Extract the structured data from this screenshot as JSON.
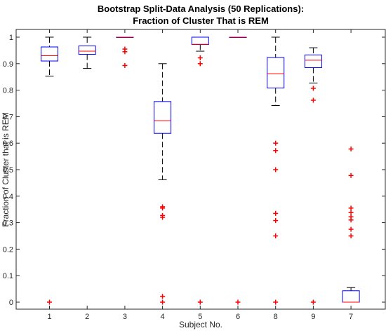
{
  "chart_data": {
    "type": "boxplot",
    "title": [
      "Bootstrap Split-Data Analysis (50 Replications):",
      "Fraction of Cluster That is REM"
    ],
    "xlabel": "Subject No.",
    "ylabel": "Fraction of Cluster that is REM",
    "ylim": [
      0,
      1.05
    ],
    "yticks": [
      "0",
      "0.1",
      "0.2",
      "0.3",
      "0.4",
      "0.5",
      "0.6",
      "0.7",
      "0.8",
      "0.9",
      "1"
    ],
    "categories": [
      "1",
      "2",
      "3",
      "4",
      "5",
      "6",
      "8",
      "9",
      "7"
    ],
    "boxes": [
      {
        "q1": 0.91,
        "median": 0.93,
        "q3": 0.963,
        "whisker_low": 0.853,
        "whisker_high": 1.0,
        "outliers": [
          0.0
        ]
      },
      {
        "q1": 0.935,
        "median": 0.947,
        "q3": 0.967,
        "whisker_low": 0.882,
        "whisker_high": 1.0,
        "outliers": []
      },
      {
        "q1": 1.0,
        "median": 1.0,
        "q3": 1.0,
        "whisker_low": 1.0,
        "whisker_high": 1.0,
        "outliers": [
          0.955,
          0.945,
          0.893
        ]
      },
      {
        "q1": 0.637,
        "median": 0.685,
        "q3": 0.757,
        "whisker_low": 0.462,
        "whisker_high": 0.9,
        "outliers": [
          0.36,
          0.355,
          0.327,
          0.32,
          0.022,
          0.0
        ]
      },
      {
        "q1": 0.972,
        "median": 0.973,
        "q3": 1.0,
        "whisker_low": 0.947,
        "whisker_high": 1.0,
        "outliers": [
          0.922,
          0.9,
          0.0
        ]
      },
      {
        "q1": 1.0,
        "median": 1.0,
        "q3": 1.0,
        "whisker_low": 1.0,
        "whisker_high": 1.0,
        "outliers": [
          0.0
        ]
      },
      {
        "q1": 0.808,
        "median": 0.862,
        "q3": 0.923,
        "whisker_low": 0.742,
        "whisker_high": 1.0,
        "outliers": [
          0.6,
          0.572,
          0.5,
          0.335,
          0.308,
          0.25,
          0.0
        ]
      },
      {
        "q1": 0.885,
        "median": 0.913,
        "q3": 0.933,
        "whisker_low": 0.827,
        "whisker_high": 0.96,
        "outliers": [
          0.807,
          0.762,
          0.0
        ]
      },
      {
        "q1": 0.0,
        "median": 0.0,
        "q3": 0.043,
        "whisker_low": 0.0,
        "whisker_high": 0.055,
        "outliers": [
          0.578,
          0.478,
          0.355,
          0.338,
          0.322,
          0.31,
          0.275,
          0.25
        ]
      }
    ],
    "colors": {
      "box": "#0000ff",
      "median": "#ff0000",
      "whisker": "#000000",
      "outlier": "#ff0000",
      "axis": "#262626"
    },
    "grid": false,
    "legend": "none"
  }
}
